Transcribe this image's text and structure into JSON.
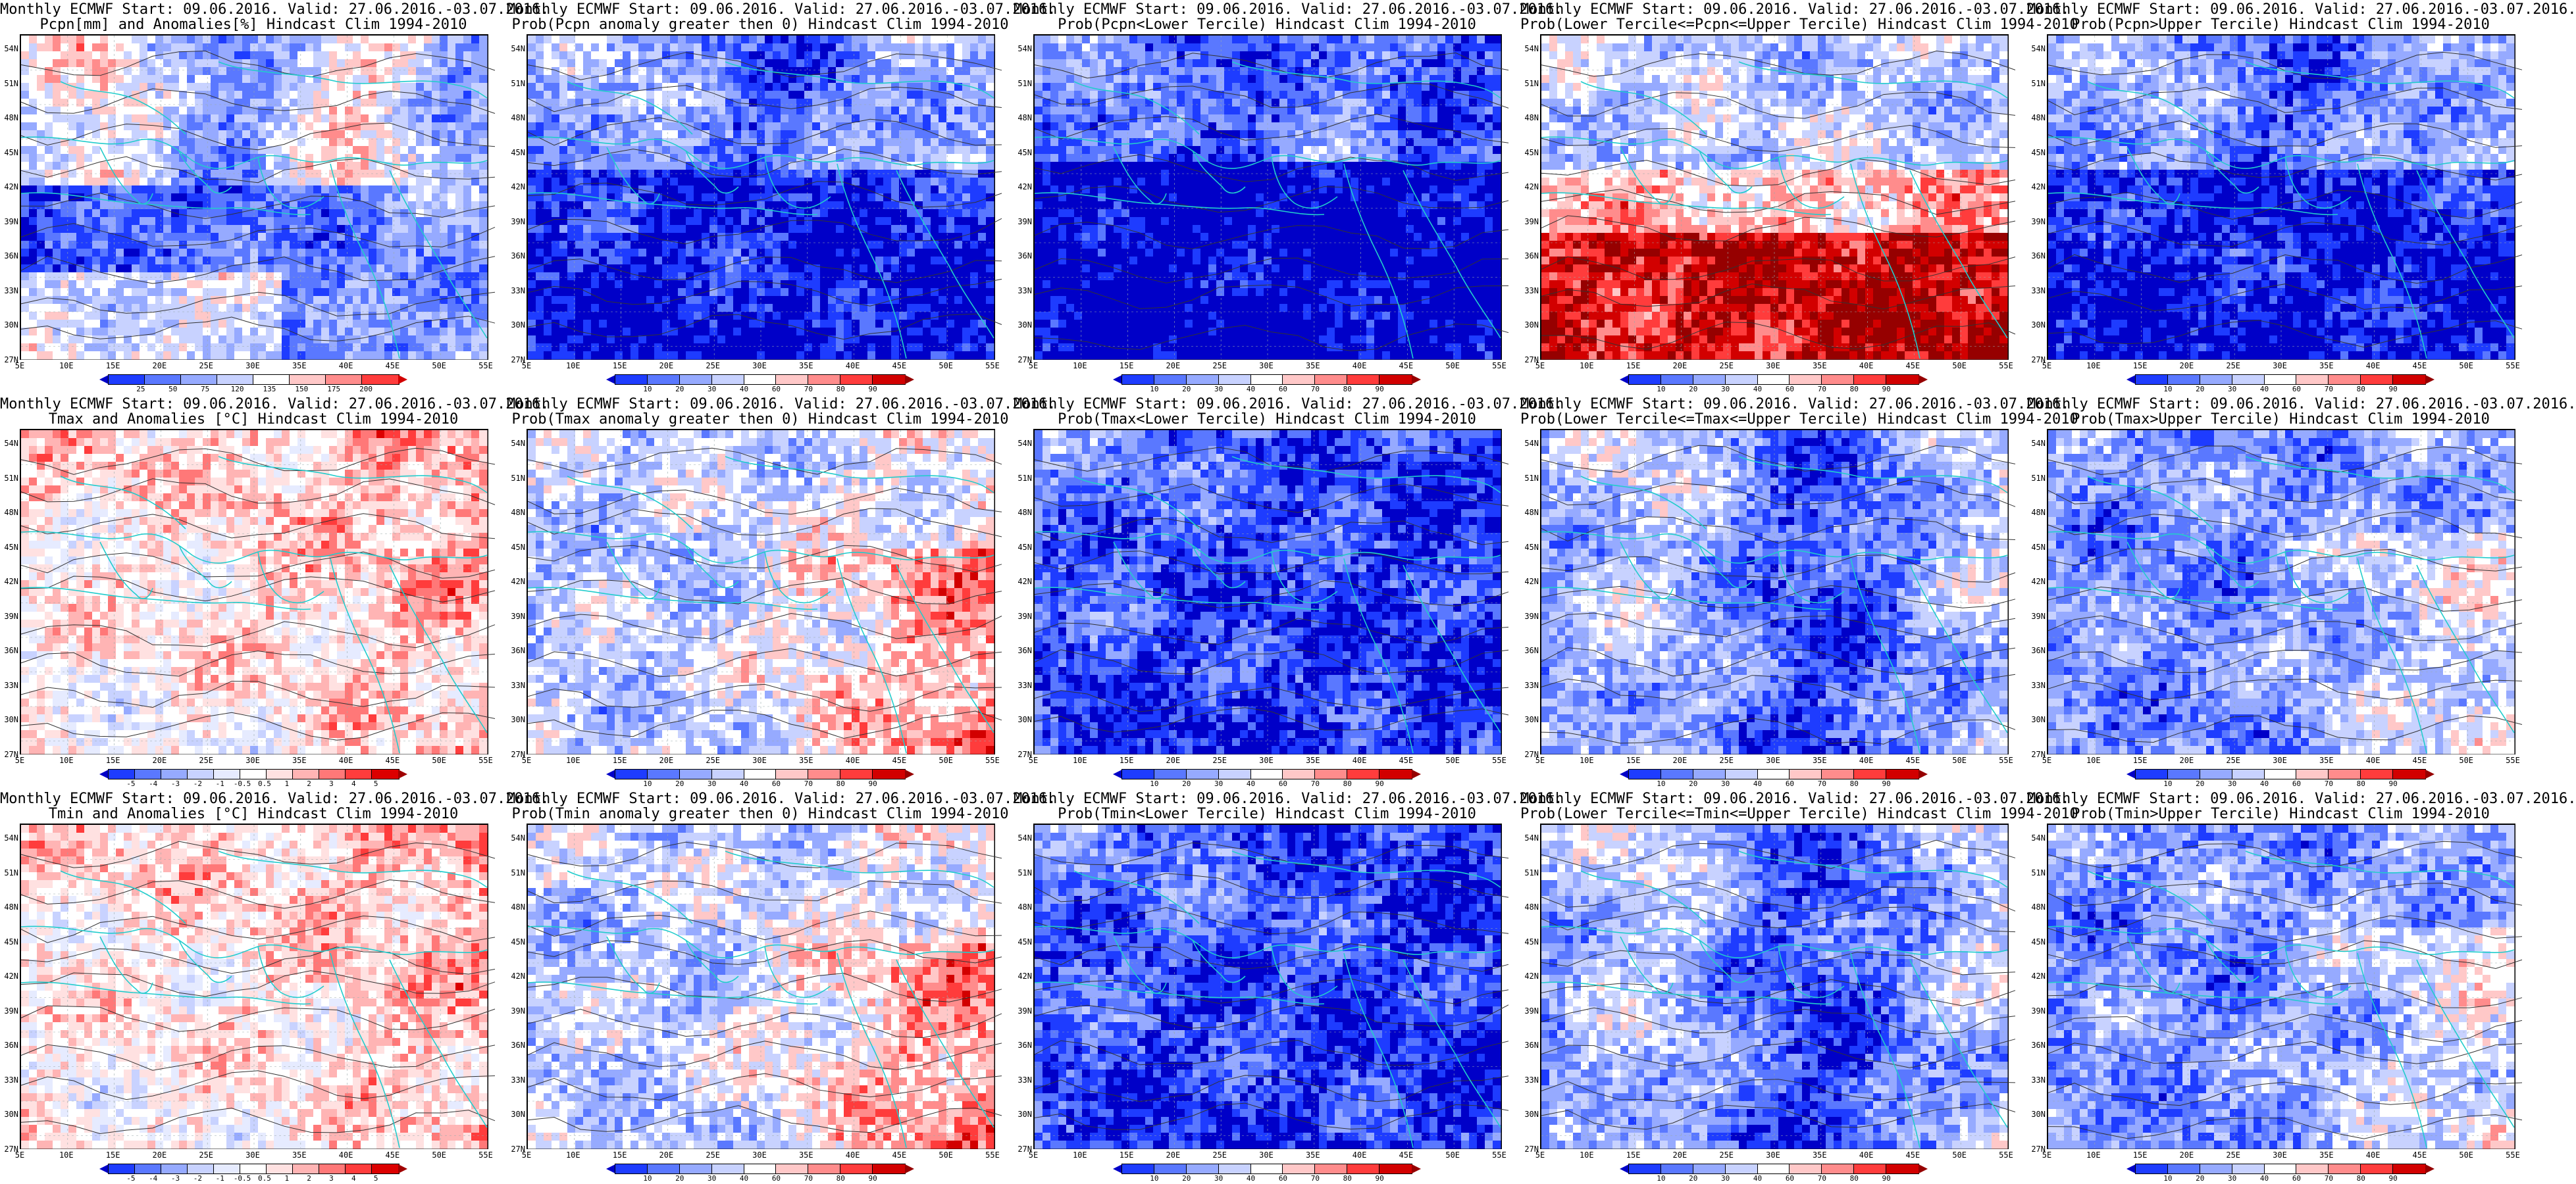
{
  "panels": [
    {
      "line1": "Monthly ECMWF Start: 09.06.2016. Valid: 27.06.2016.-03.07.2016.",
      "line2": "Pcpn[mm] and Anomalies[%] Hindcast Clim 1994-2010",
      "scale": "pcpn_anom",
      "mood": "pcpn_anom",
      "colorbar_labels": [
        "25",
        "50",
        "75",
        "120",
        "135",
        "150",
        "175",
        "200"
      ]
    },
    {
      "line1": "Monthly ECMWF Start: 09.06.2016. Valid: 27.06.2016.-03.07.2016.",
      "line2": "Prob(Pcpn anomaly greater then 0) Hindcast Clim 1994-2010",
      "scale": "prob",
      "mood": "prob_blue_south",
      "colorbar_labels": [
        "10",
        "20",
        "30",
        "40",
        "60",
        "70",
        "80",
        "90"
      ]
    },
    {
      "line1": "Monthly ECMWF Start: 09.06.2016. Valid: 27.06.2016.-03.07.2016.",
      "line2": "Prob(Pcpn<Lower Tercile) Hindcast Clim 1994-2010",
      "scale": "prob",
      "mood": "prob_deep_blue_south",
      "colorbar_labels": [
        "10",
        "20",
        "30",
        "40",
        "60",
        "70",
        "80",
        "90"
      ]
    },
    {
      "line1": "Monthly ECMWF Start: 09.06.2016. Valid: 27.06.2016.-03.07.2016.",
      "line2": "Prob(Lower Tercile<=Pcpn<=Upper Tercile) Hindcast Clim 1994-2010",
      "scale": "prob",
      "mood": "prob_red_south",
      "colorbar_labels": [
        "10",
        "20",
        "30",
        "40",
        "60",
        "70",
        "80",
        "90"
      ]
    },
    {
      "line1": "Monthly ECMWF Start: 09.06.2016. Valid: 27.06.2016.-03.07.2016.",
      "line2": "Prob(Pcpn>Upper Tercile) Hindcast Clim 1994-2010",
      "scale": "prob",
      "mood": "prob_blue_south",
      "colorbar_labels": [
        "10",
        "20",
        "30",
        "40",
        "60",
        "70",
        "80",
        "90"
      ]
    },
    {
      "line1": "Monthly ECMWF Start: 09.06.2016. Valid: 27.06.2016.-03.07.2016.",
      "line2": "Tmax and Anomalies [°C] Hindcast Clim 1994-2010",
      "scale": "temp_anom",
      "mood": "temp_warm_light",
      "colorbar_labels": [
        "-5",
        "-4",
        "-3",
        "-2",
        "-1",
        "-0.5",
        "0.5",
        "1",
        "2",
        "3",
        "4",
        "5"
      ]
    },
    {
      "line1": "Monthly ECMWF Start: 09.06.2016. Valid: 27.06.2016.-03.07.2016.",
      "line2": "Prob(Tmax anomaly greater then 0) Hindcast Clim 1994-2010",
      "scale": "prob",
      "mood": "prob_red_east",
      "colorbar_labels": [
        "10",
        "20",
        "30",
        "40",
        "60",
        "70",
        "80",
        "90"
      ]
    },
    {
      "line1": "Monthly ECMWF Start: 09.06.2016. Valid: 27.06.2016.-03.07.2016.",
      "line2": "Prob(Tmax<Lower Tercile) Hindcast Clim 1994-2010",
      "scale": "prob",
      "mood": "prob_blue_all",
      "colorbar_labels": [
        "10",
        "20",
        "30",
        "40",
        "60",
        "70",
        "80",
        "90"
      ]
    },
    {
      "line1": "Monthly ECMWF Start: 09.06.2016. Valid: 27.06.2016.-03.07.2016.",
      "line2": "Prob(Lower Tercile<=Tmax<=Upper Tercile) Hindcast Clim 1994-2010",
      "scale": "prob",
      "mood": "prob_blue_mid",
      "colorbar_labels": [
        "10",
        "20",
        "30",
        "40",
        "60",
        "70",
        "80",
        "90"
      ]
    },
    {
      "line1": "Monthly ECMWF Start: 09.06.2016. Valid: 27.06.2016.-03.07.2016.",
      "line2": "Prob(Tmax>Upper Tercile) Hindcast Clim 1994-2010",
      "scale": "prob",
      "mood": "prob_mixed",
      "colorbar_labels": [
        "10",
        "20",
        "30",
        "40",
        "60",
        "70",
        "80",
        "90"
      ]
    },
    {
      "line1": "Monthly ECMWF Start: 09.06.2016. Valid: 27.06.2016.-03.07.2016.",
      "line2": "Tmin and Anomalies [°C] Hindcast Clim 1994-2010",
      "scale": "temp_anom",
      "mood": "temp_warm_light",
      "colorbar_labels": [
        "-5",
        "-4",
        "-3",
        "-2",
        "-1",
        "-0.5",
        "0.5",
        "1",
        "2",
        "3",
        "4",
        "5"
      ]
    },
    {
      "line1": "Monthly ECMWF Start: 09.06.2016. Valid: 27.06.2016.-03.07.2016.",
      "line2": "Prob(Tmin anomaly greater then 0) Hindcast Clim 1994-2010",
      "scale": "prob",
      "mood": "prob_red_east",
      "colorbar_labels": [
        "10",
        "20",
        "30",
        "40",
        "60",
        "70",
        "80",
        "90"
      ]
    },
    {
      "line1": "Monthly ECMWF Start: 09.06.2016. Valid: 27.06.2016.-03.07.2016.",
      "line2": "Prob(Tmin<Lower Tercile) Hindcast Clim 1994-2010",
      "scale": "prob",
      "mood": "prob_blue_all",
      "colorbar_labels": [
        "10",
        "20",
        "30",
        "40",
        "60",
        "70",
        "80",
        "90"
      ]
    },
    {
      "line1": "Monthly ECMWF Start: 09.06.2016. Valid: 27.06.2016.-03.07.2016.",
      "line2": "Prob(Lower Tercile<=Tmin<=Upper Tercile) Hindcast Clim 1994-2010",
      "scale": "prob",
      "mood": "prob_blue_mid",
      "colorbar_labels": [
        "10",
        "20",
        "30",
        "40",
        "60",
        "70",
        "80",
        "90"
      ]
    },
    {
      "line1": "Monthly ECMWF Start: 09.06.2016. Valid: 27.06.2016.-03.07.2016.",
      "line2": "Prob(Tmin>Upper Tercile) Hindcast Clim 1994-2010",
      "scale": "prob",
      "mood": "prob_mixed",
      "colorbar_labels": [
        "10",
        "20",
        "30",
        "40",
        "60",
        "70",
        "80",
        "90"
      ]
    }
  ],
  "lat_labels": [
    "54N",
    "51N",
    "48N",
    "45N",
    "42N",
    "39N",
    "36N",
    "33N",
    "30N",
    "27N"
  ],
  "lon_labels": [
    "5E",
    "10E",
    "15E",
    "20E",
    "25E",
    "30E",
    "35E",
    "40E",
    "45E",
    "50E",
    "55E"
  ],
  "scales": {
    "prob": [
      "#0000c8",
      "#1e3cff",
      "#5a78ff",
      "#96aaff",
      "#c8d2ff",
      "#ffffff",
      "#ffc8c8",
      "#ff8c8c",
      "#ff3c3c",
      "#d20000",
      "#960000"
    ],
    "pcpn_anom": [
      "#0000c8",
      "#1e3cff",
      "#5a78ff",
      "#96aaff",
      "#c8d2ff",
      "#ffffff",
      "#ffc8c8",
      "#ff8c8c",
      "#ff3c3c",
      "#d20000"
    ],
    "temp_anom": [
      "#0000c8",
      "#1e3cff",
      "#5a78ff",
      "#96aaff",
      "#c8d2ff",
      "#e6ebff",
      "#ffffff",
      "#ffe1e1",
      "#ffb4b4",
      "#ff7878",
      "#ff3c3c",
      "#dc0000",
      "#a00000"
    ]
  },
  "coast_color": "#22cccc",
  "contour_color": "#333333"
}
